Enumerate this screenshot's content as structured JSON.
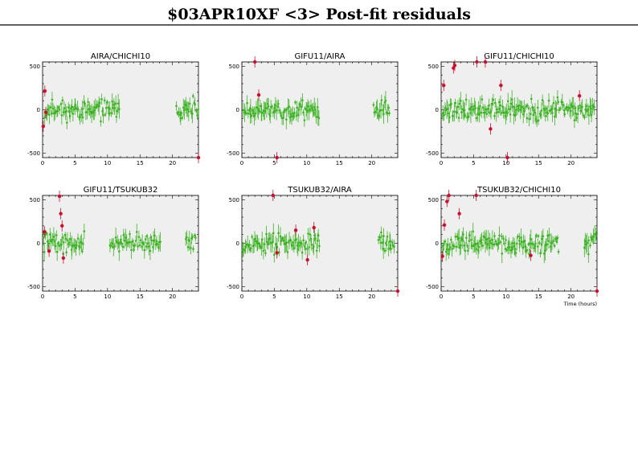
{
  "title": "$03APR10XF <3> Post-fit residuals",
  "colors": {
    "good": "#3db324",
    "flagged": "#c8102e",
    "background": "#efefef"
  },
  "x_axis_label": "Time (hours)",
  "chart_data": [
    {
      "type": "scatter",
      "title": "AIRA/CHICHI10",
      "xlim": [
        0,
        24
      ],
      "ylim": [
        -550,
        550
      ],
      "xticks": [
        0,
        5,
        10,
        15,
        20
      ],
      "yticks": [
        -500,
        0,
        500
      ],
      "good_segments": [
        [
          0.3,
          11.9
        ],
        [
          20.5,
          24
        ]
      ],
      "seed": 11,
      "flagged": [
        [
          0.1,
          -190
        ],
        [
          0.35,
          215
        ],
        [
          0.5,
          -30
        ],
        [
          24,
          -580
        ]
      ]
    },
    {
      "type": "scatter",
      "title": "GIFU11/AIRA",
      "xlim": [
        0,
        24
      ],
      "ylim": [
        -550,
        550
      ],
      "xticks": [
        0,
        5,
        10,
        15,
        20
      ],
      "yticks": [
        -500,
        0,
        500
      ],
      "good_segments": [
        [
          0.2,
          12
        ],
        [
          20.2,
          22.8
        ]
      ],
      "seed": 23,
      "flagged": [
        [
          2,
          585
        ],
        [
          2.6,
          170
        ],
        [
          5.4,
          -590
        ]
      ]
    },
    {
      "type": "scatter",
      "title": "GIFU11/CHICHI10",
      "xlim": [
        0,
        24
      ],
      "ylim": [
        -550,
        550
      ],
      "xticks": [
        0,
        5,
        10,
        15,
        20
      ],
      "yticks": [
        -500,
        0,
        500
      ],
      "good_segments": [
        [
          0.1,
          23.7
        ]
      ],
      "seed": 37,
      "flagged": [
        [
          0.4,
          280
        ],
        [
          1.9,
          480
        ],
        [
          2.1,
          510
        ],
        [
          5.5,
          590
        ],
        [
          6.8,
          580
        ],
        [
          7.6,
          -220
        ],
        [
          9.2,
          280
        ],
        [
          10.2,
          -590
        ],
        [
          21.3,
          160
        ]
      ]
    },
    {
      "type": "scatter",
      "title": "GIFU11/TSUKUB32",
      "xlim": [
        0,
        24
      ],
      "ylim": [
        -550,
        550
      ],
      "xticks": [
        0,
        5,
        10,
        15,
        20
      ],
      "yticks": [
        -500,
        0,
        500
      ],
      "good_segments": [
        [
          0.1,
          6.5
        ],
        [
          10.3,
          18.2
        ],
        [
          22,
          23.6
        ]
      ],
      "seed": 41,
      "flagged": [
        [
          0.3,
          130
        ],
        [
          1,
          -90
        ],
        [
          2.6,
          540
        ],
        [
          2.8,
          340
        ],
        [
          3,
          200
        ],
        [
          3.2,
          -170
        ]
      ]
    },
    {
      "type": "scatter",
      "title": "TSUKUB32/AIRA",
      "xlim": [
        0,
        24
      ],
      "ylim": [
        -550,
        550
      ],
      "xticks": [
        0,
        5,
        10,
        15,
        20
      ],
      "yticks": [
        -500,
        0,
        500
      ],
      "good_segments": [
        [
          0.1,
          12
        ],
        [
          21,
          23.5
        ]
      ],
      "seed": 53,
      "flagged": [
        [
          4.8,
          580
        ],
        [
          5.4,
          -110
        ],
        [
          8.3,
          150
        ],
        [
          10.1,
          -190
        ],
        [
          11.1,
          180
        ],
        [
          24,
          -590
        ]
      ]
    },
    {
      "type": "scatter",
      "title": "TSUKUB32/CHICHI10",
      "xlim": [
        0,
        24
      ],
      "ylim": [
        -550,
        550
      ],
      "xticks": [
        0,
        5,
        10,
        15,
        20
      ],
      "yticks": [
        -500,
        0,
        500
      ],
      "good_segments": [
        [
          0.1,
          18.2
        ],
        [
          22,
          24
        ]
      ],
      "seed": 67,
      "flagged": [
        [
          0.2,
          -150
        ],
        [
          0.5,
          210
        ],
        [
          0.9,
          480
        ],
        [
          1.2,
          580
        ],
        [
          2.8,
          340
        ],
        [
          5.4,
          580
        ],
        [
          13.8,
          -140
        ],
        [
          24,
          -590
        ]
      ]
    }
  ]
}
